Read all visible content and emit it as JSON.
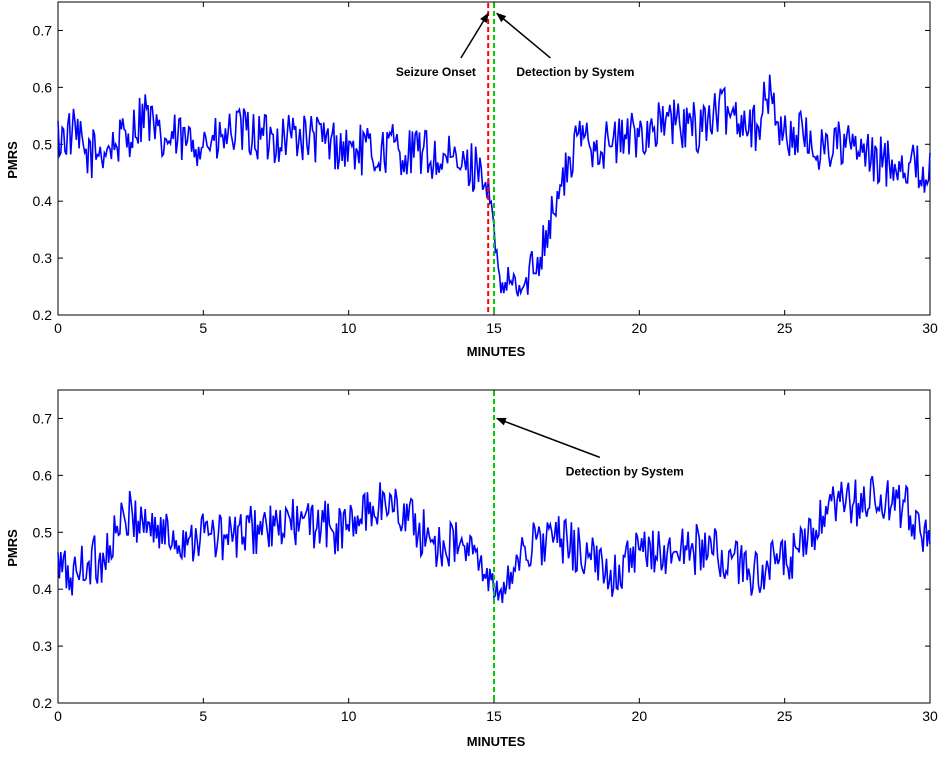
{
  "chart_data": [
    {
      "type": "line",
      "title": "",
      "xlabel": "MINUTES",
      "ylabel": "PMRS",
      "xlim": [
        0,
        30
      ],
      "ylim": [
        0.2,
        0.75
      ],
      "xticks": [
        "0",
        "5",
        "10",
        "15",
        "20",
        "25",
        "30"
      ],
      "yticks": [
        "0.2",
        "0.3",
        "0.4",
        "0.5",
        "0.6",
        "0.7"
      ],
      "series": [
        {
          "color": "#0000ff",
          "x": [
            0,
            0.5,
            1,
            1.5,
            2,
            2.5,
            3,
            3.5,
            4,
            4.5,
            5,
            5.5,
            6,
            6.5,
            7,
            7.5,
            8,
            8.5,
            9,
            9.5,
            10,
            10.5,
            11,
            11.5,
            12,
            12.5,
            13,
            13.5,
            14,
            14.5,
            14.8,
            15,
            15.2,
            15.5,
            16,
            16.5,
            17,
            17.5,
            18,
            18.5,
            19,
            19.5,
            20,
            20.5,
            21,
            21.5,
            22,
            22.5,
            23,
            23.5,
            24,
            24.5,
            25,
            25.5,
            26,
            26.5,
            27,
            27.5,
            28,
            28.5,
            29,
            29.5,
            30
          ],
          "y": [
            0.51,
            0.52,
            0.48,
            0.49,
            0.5,
            0.52,
            0.56,
            0.5,
            0.51,
            0.5,
            0.51,
            0.5,
            0.52,
            0.52,
            0.51,
            0.51,
            0.52,
            0.51,
            0.51,
            0.5,
            0.49,
            0.49,
            0.48,
            0.5,
            0.48,
            0.49,
            0.47,
            0.47,
            0.46,
            0.46,
            0.42,
            0.35,
            0.24,
            0.26,
            0.24,
            0.3,
            0.38,
            0.45,
            0.52,
            0.5,
            0.5,
            0.51,
            0.52,
            0.53,
            0.54,
            0.53,
            0.53,
            0.55,
            0.56,
            0.55,
            0.53,
            0.59,
            0.51,
            0.52,
            0.49,
            0.5,
            0.5,
            0.49,
            0.47,
            0.47,
            0.47,
            0.46,
            0.45
          ]
        }
      ],
      "markers": [
        {
          "x": 14.8,
          "color": "#ff0000",
          "style": "dashed"
        },
        {
          "x": 15.0,
          "color": "#00cc00",
          "style": "dashed"
        }
      ],
      "annotations": [
        {
          "text": "Seizure Onset",
          "x": 13.0,
          "y": 0.62,
          "arrow_to": [
            14.8,
            0.73
          ]
        },
        {
          "text": "Detection by System",
          "x": 17.8,
          "y": 0.62,
          "arrow_to": [
            15.1,
            0.73
          ]
        }
      ]
    },
    {
      "type": "line",
      "title": "",
      "xlabel": "MINUTES",
      "ylabel": "PMRS",
      "xlim": [
        0,
        30
      ],
      "ylim": [
        0.2,
        0.75
      ],
      "xticks": [
        "0",
        "5",
        "10",
        "15",
        "20",
        "25",
        "30"
      ],
      "yticks": [
        "0.2",
        "0.3",
        "0.4",
        "0.5",
        "0.6",
        "0.7"
      ],
      "series": [
        {
          "color": "#0000ff",
          "x": [
            0,
            0.5,
            1,
            1.5,
            2,
            2.5,
            3,
            3.5,
            4,
            4.5,
            5,
            5.5,
            6,
            6.5,
            7,
            7.5,
            8,
            8.5,
            9,
            9.5,
            10,
            10.5,
            11,
            11.5,
            12,
            12.5,
            13,
            13.5,
            14,
            14.5,
            14.8,
            15,
            15.2,
            15.5,
            16,
            16.5,
            17,
            17.5,
            18,
            18.5,
            19,
            19.5,
            20,
            20.5,
            21,
            21.5,
            22,
            22.5,
            23,
            23.5,
            24,
            24.5,
            25,
            25.5,
            26,
            26.5,
            27,
            27.5,
            28,
            28.5,
            29,
            29.5,
            30
          ],
          "y": [
            0.44,
            0.42,
            0.45,
            0.45,
            0.5,
            0.53,
            0.52,
            0.5,
            0.49,
            0.49,
            0.5,
            0.49,
            0.49,
            0.5,
            0.51,
            0.5,
            0.52,
            0.51,
            0.52,
            0.5,
            0.51,
            0.53,
            0.55,
            0.55,
            0.53,
            0.5,
            0.48,
            0.48,
            0.47,
            0.45,
            0.42,
            0.41,
            0.37,
            0.42,
            0.47,
            0.48,
            0.49,
            0.48,
            0.47,
            0.44,
            0.43,
            0.44,
            0.46,
            0.47,
            0.46,
            0.47,
            0.47,
            0.47,
            0.45,
            0.44,
            0.43,
            0.44,
            0.45,
            0.46,
            0.5,
            0.53,
            0.55,
            0.55,
            0.56,
            0.55,
            0.54,
            0.53,
            0.48
          ]
        }
      ],
      "markers": [
        {
          "x": 15.0,
          "color": "#00cc00",
          "style": "dashed"
        }
      ],
      "annotations": [
        {
          "text": "Detection by System",
          "x": 19.5,
          "y": 0.6,
          "arrow_to": [
            15.1,
            0.7
          ]
        }
      ]
    }
  ]
}
